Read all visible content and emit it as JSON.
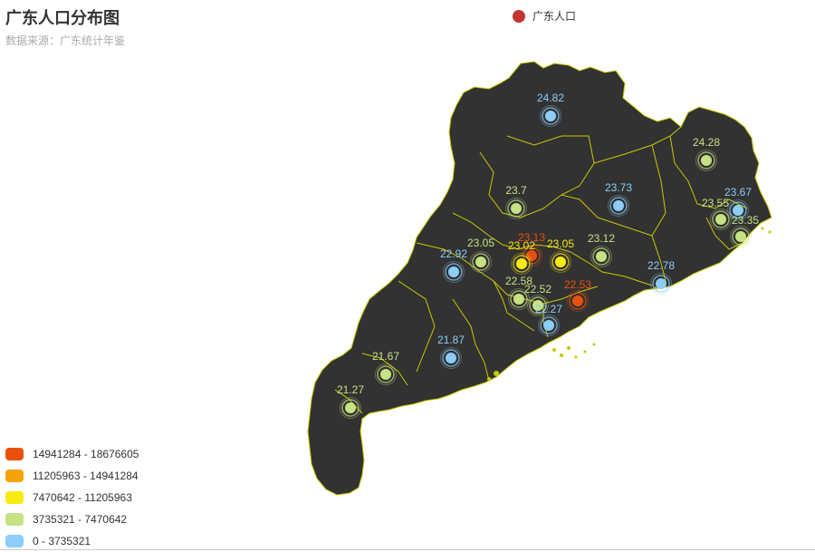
{
  "title": "广东人口分布图",
  "subtitle": "数据来源：广东统计年鉴",
  "legend": {
    "label": "广东人口",
    "color": "#c23531"
  },
  "visual_map": {
    "ranges": [
      {
        "label": "14941284 - 18676605",
        "color": "#e8500c"
      },
      {
        "label": "11205963 - 14941284",
        "color": "#f5a30b"
      },
      {
        "label": "7470642 - 11205963",
        "color": "#f8ea12"
      },
      {
        "label": "3735321 - 7470642",
        "color": "#c6e283"
      },
      {
        "label": "0 - 3735321",
        "color": "#8ccdf9"
      }
    ]
  },
  "colors": {
    "land": "#323232",
    "border": "#c8c800"
  },
  "cities": [
    {
      "value": "24.82",
      "range": 4
    },
    {
      "value": "24.28",
      "range": 3
    },
    {
      "value": "23.7",
      "range": 3
    },
    {
      "value": "23.73",
      "range": 4
    },
    {
      "value": "23.67",
      "range": 4
    },
    {
      "value": "23.55",
      "range": 3
    },
    {
      "value": "23.35",
      "range": 3
    },
    {
      "value": "23.13",
      "range": 0
    },
    {
      "value": "23.05",
      "range": 3
    },
    {
      "value": "23.02",
      "range": 2
    },
    {
      "value": "23.05",
      "range": 2
    },
    {
      "value": "23.12",
      "range": 3
    },
    {
      "value": "22.92",
      "range": 4
    },
    {
      "value": "22.58",
      "range": 3
    },
    {
      "value": "22.52",
      "range": 3
    },
    {
      "value": "22.53",
      "range": 0
    },
    {
      "value": "22.27",
      "range": 4
    },
    {
      "value": "22.78",
      "range": 4
    },
    {
      "value": "21.87",
      "range": 4
    },
    {
      "value": "21.67",
      "range": 3
    },
    {
      "value": "21.27",
      "range": 3
    }
  ]
}
